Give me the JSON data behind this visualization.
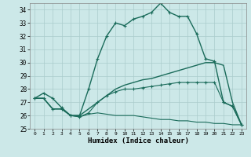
{
  "xlabel": "Humidex (Indice chaleur)",
  "bg_color": "#cce8e8",
  "grid_color": "#aacccc",
  "line_color": "#1a6b5a",
  "xmin": 0,
  "xmax": 23,
  "ymin": 25,
  "ymax": 34,
  "series": [
    {
      "x": [
        0,
        1,
        2,
        3,
        4,
        5,
        6,
        7,
        8,
        9,
        10,
        11,
        12,
        13,
        14,
        15,
        16,
        17,
        18,
        19,
        20,
        21,
        22,
        23
      ],
      "y": [
        27.3,
        27.7,
        27.3,
        26.6,
        26.0,
        26.0,
        28.0,
        30.3,
        32.0,
        33.0,
        32.8,
        33.3,
        33.5,
        33.8,
        34.5,
        33.8,
        33.5,
        33.5,
        32.2,
        30.3,
        30.1,
        27.0,
        26.7,
        25.3
      ],
      "marker": true,
      "linewidth": 1.0
    },
    {
      "x": [
        0,
        1,
        2,
        3,
        4,
        5,
        6,
        7,
        8,
        9,
        10,
        11,
        12,
        13,
        14,
        15,
        16,
        17,
        18,
        19,
        20,
        21,
        22,
        23
      ],
      "y": [
        27.3,
        27.3,
        26.5,
        26.5,
        26.0,
        26.0,
        26.5,
        27.0,
        27.5,
        28.0,
        28.3,
        28.5,
        28.7,
        28.8,
        29.0,
        29.2,
        29.4,
        29.6,
        29.8,
        30.0,
        30.0,
        29.8,
        27.0,
        25.3
      ],
      "marker": false,
      "linewidth": 1.0
    },
    {
      "x": [
        0,
        1,
        2,
        3,
        4,
        5,
        6,
        7,
        8,
        9,
        10,
        11,
        12,
        13,
        14,
        15,
        16,
        17,
        18,
        19,
        20,
        21,
        22,
        23
      ],
      "y": [
        27.3,
        27.3,
        26.5,
        26.5,
        26.0,
        25.9,
        26.2,
        27.0,
        27.5,
        27.8,
        28.0,
        28.0,
        28.1,
        28.2,
        28.3,
        28.4,
        28.5,
        28.5,
        28.5,
        28.5,
        28.5,
        27.0,
        26.7,
        25.3
      ],
      "marker": true,
      "linewidth": 0.8
    },
    {
      "x": [
        0,
        1,
        2,
        3,
        4,
        5,
        6,
        7,
        8,
        9,
        10,
        11,
        12,
        13,
        14,
        15,
        16,
        17,
        18,
        19,
        20,
        21,
        22,
        23
      ],
      "y": [
        27.3,
        27.3,
        26.5,
        26.5,
        26.0,
        25.9,
        26.1,
        26.2,
        26.1,
        26.0,
        26.0,
        26.0,
        25.9,
        25.8,
        25.7,
        25.7,
        25.6,
        25.6,
        25.5,
        25.5,
        25.4,
        25.4,
        25.3,
        25.3
      ],
      "marker": false,
      "linewidth": 0.8
    }
  ]
}
